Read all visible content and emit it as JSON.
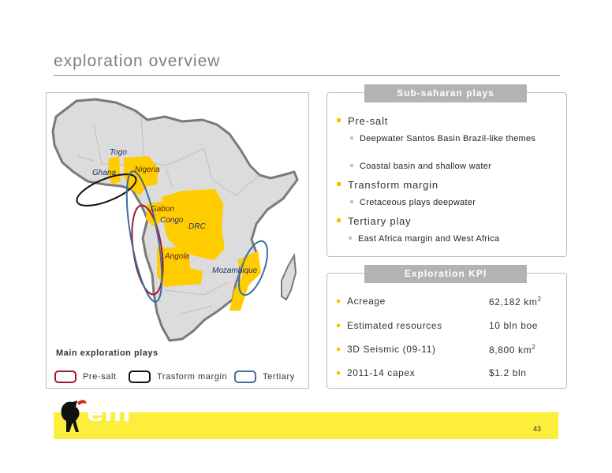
{
  "title": "exploration overview",
  "map": {
    "country_labels": {
      "togo": "Togo",
      "ghana": "Ghana",
      "nigeria": "Nigeria",
      "gabon": "Gabon",
      "congo": "Congo",
      "drc": "DRC",
      "angola": "Angola",
      "mozambique": "Mozambique"
    },
    "caption": "Main exploration plays",
    "legend": [
      {
        "label": "Pre-salt",
        "color": "#a8162e"
      },
      {
        "label": "Trasform margin",
        "color": "#111111"
      },
      {
        "label": "Tertiary",
        "color": "#3f6d9e"
      }
    ]
  },
  "plays": {
    "header": "Sub-saharan plays",
    "items": [
      {
        "label": "Pre-salt",
        "sub": [
          "Deepwater Santos Basin Brazil-like themes",
          "Coastal basin and shallow water"
        ]
      },
      {
        "label": "Transform margin",
        "sub": [
          "Cretaceous plays deepwater"
        ]
      },
      {
        "label": "Tertiary play",
        "sub": [
          "East Africa margin and West Africa"
        ]
      }
    ]
  },
  "kpi": {
    "header": "Exploration KPI",
    "rows": [
      {
        "label": "Acreage",
        "value": "62,182 km",
        "sup": "2"
      },
      {
        "label": "Estimated resources",
        "value": "10 bln boe",
        "sup": ""
      },
      {
        "label": "3D Seismic (09-11)",
        "value": "8,800 km",
        "sup": "2"
      },
      {
        "label": "2011-14 capex",
        "value": "$1.2 bln",
        "sup": ""
      }
    ]
  },
  "footer": {
    "page_number": "43",
    "logo_text": "eni"
  },
  "colors": {
    "accent_yellow": "#ffcc00",
    "footer_yellow": "#fcee3a",
    "header_grey": "#b3b3b3"
  }
}
